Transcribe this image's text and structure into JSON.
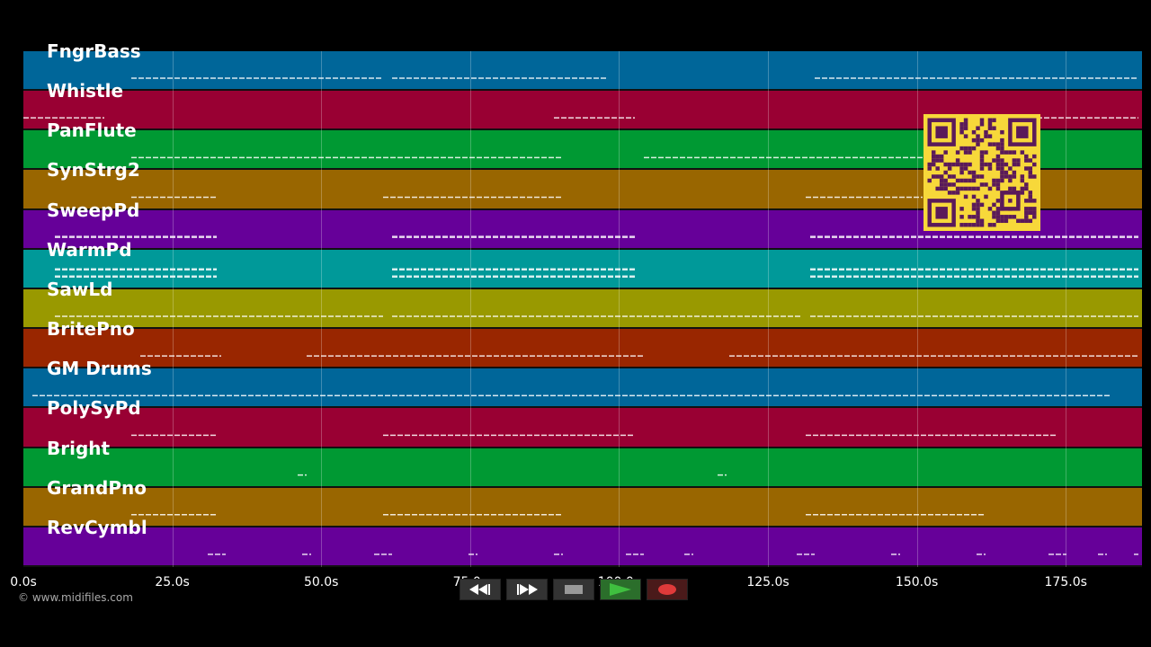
{
  "tracks": [
    {
      "label": "FngrBass",
      "color": "#006699"
    },
    {
      "label": "Whistle",
      "color": "#990033"
    },
    {
      "label": "PanFlute",
      "color": "#009933"
    },
    {
      "label": "SynStrg2",
      "color": "#996600"
    },
    {
      "label": "SweepPd",
      "color": "#660099"
    },
    {
      "label": "WarmPd",
      "color": "#009999"
    },
    {
      "label": "SawLd",
      "color": "#999900"
    },
    {
      "label": "BritePno",
      "color": "#992600"
    },
    {
      "label": "GM Drums",
      "color": "#006699"
    },
    {
      "label": "PolySyPd",
      "color": "#990033"
    },
    {
      "label": "Bright",
      "color": "#009933"
    },
    {
      "label": "GrandPno",
      "color": "#996600"
    },
    {
      "label": "RevCymbl",
      "color": "#660099"
    }
  ],
  "axis": {
    "ticks": [
      "0.0s",
      "25.0s",
      "50.0s",
      "75.0s",
      "100.0s",
      "125.0s",
      "150.0s",
      "175.0s"
    ],
    "tick_values": [
      0,
      25,
      50,
      75,
      100,
      125,
      150,
      175
    ],
    "max_seconds": 187.8
  },
  "copyright": "© www.midifiles.com",
  "transport": {
    "rewind_icon": "rewind-icon",
    "fastforward_icon": "fast-forward-icon",
    "stop_icon": "stop-icon",
    "play_icon": "play-icon",
    "record_icon": "record-icon"
  },
  "qr_icon": "qr-code-icon"
}
